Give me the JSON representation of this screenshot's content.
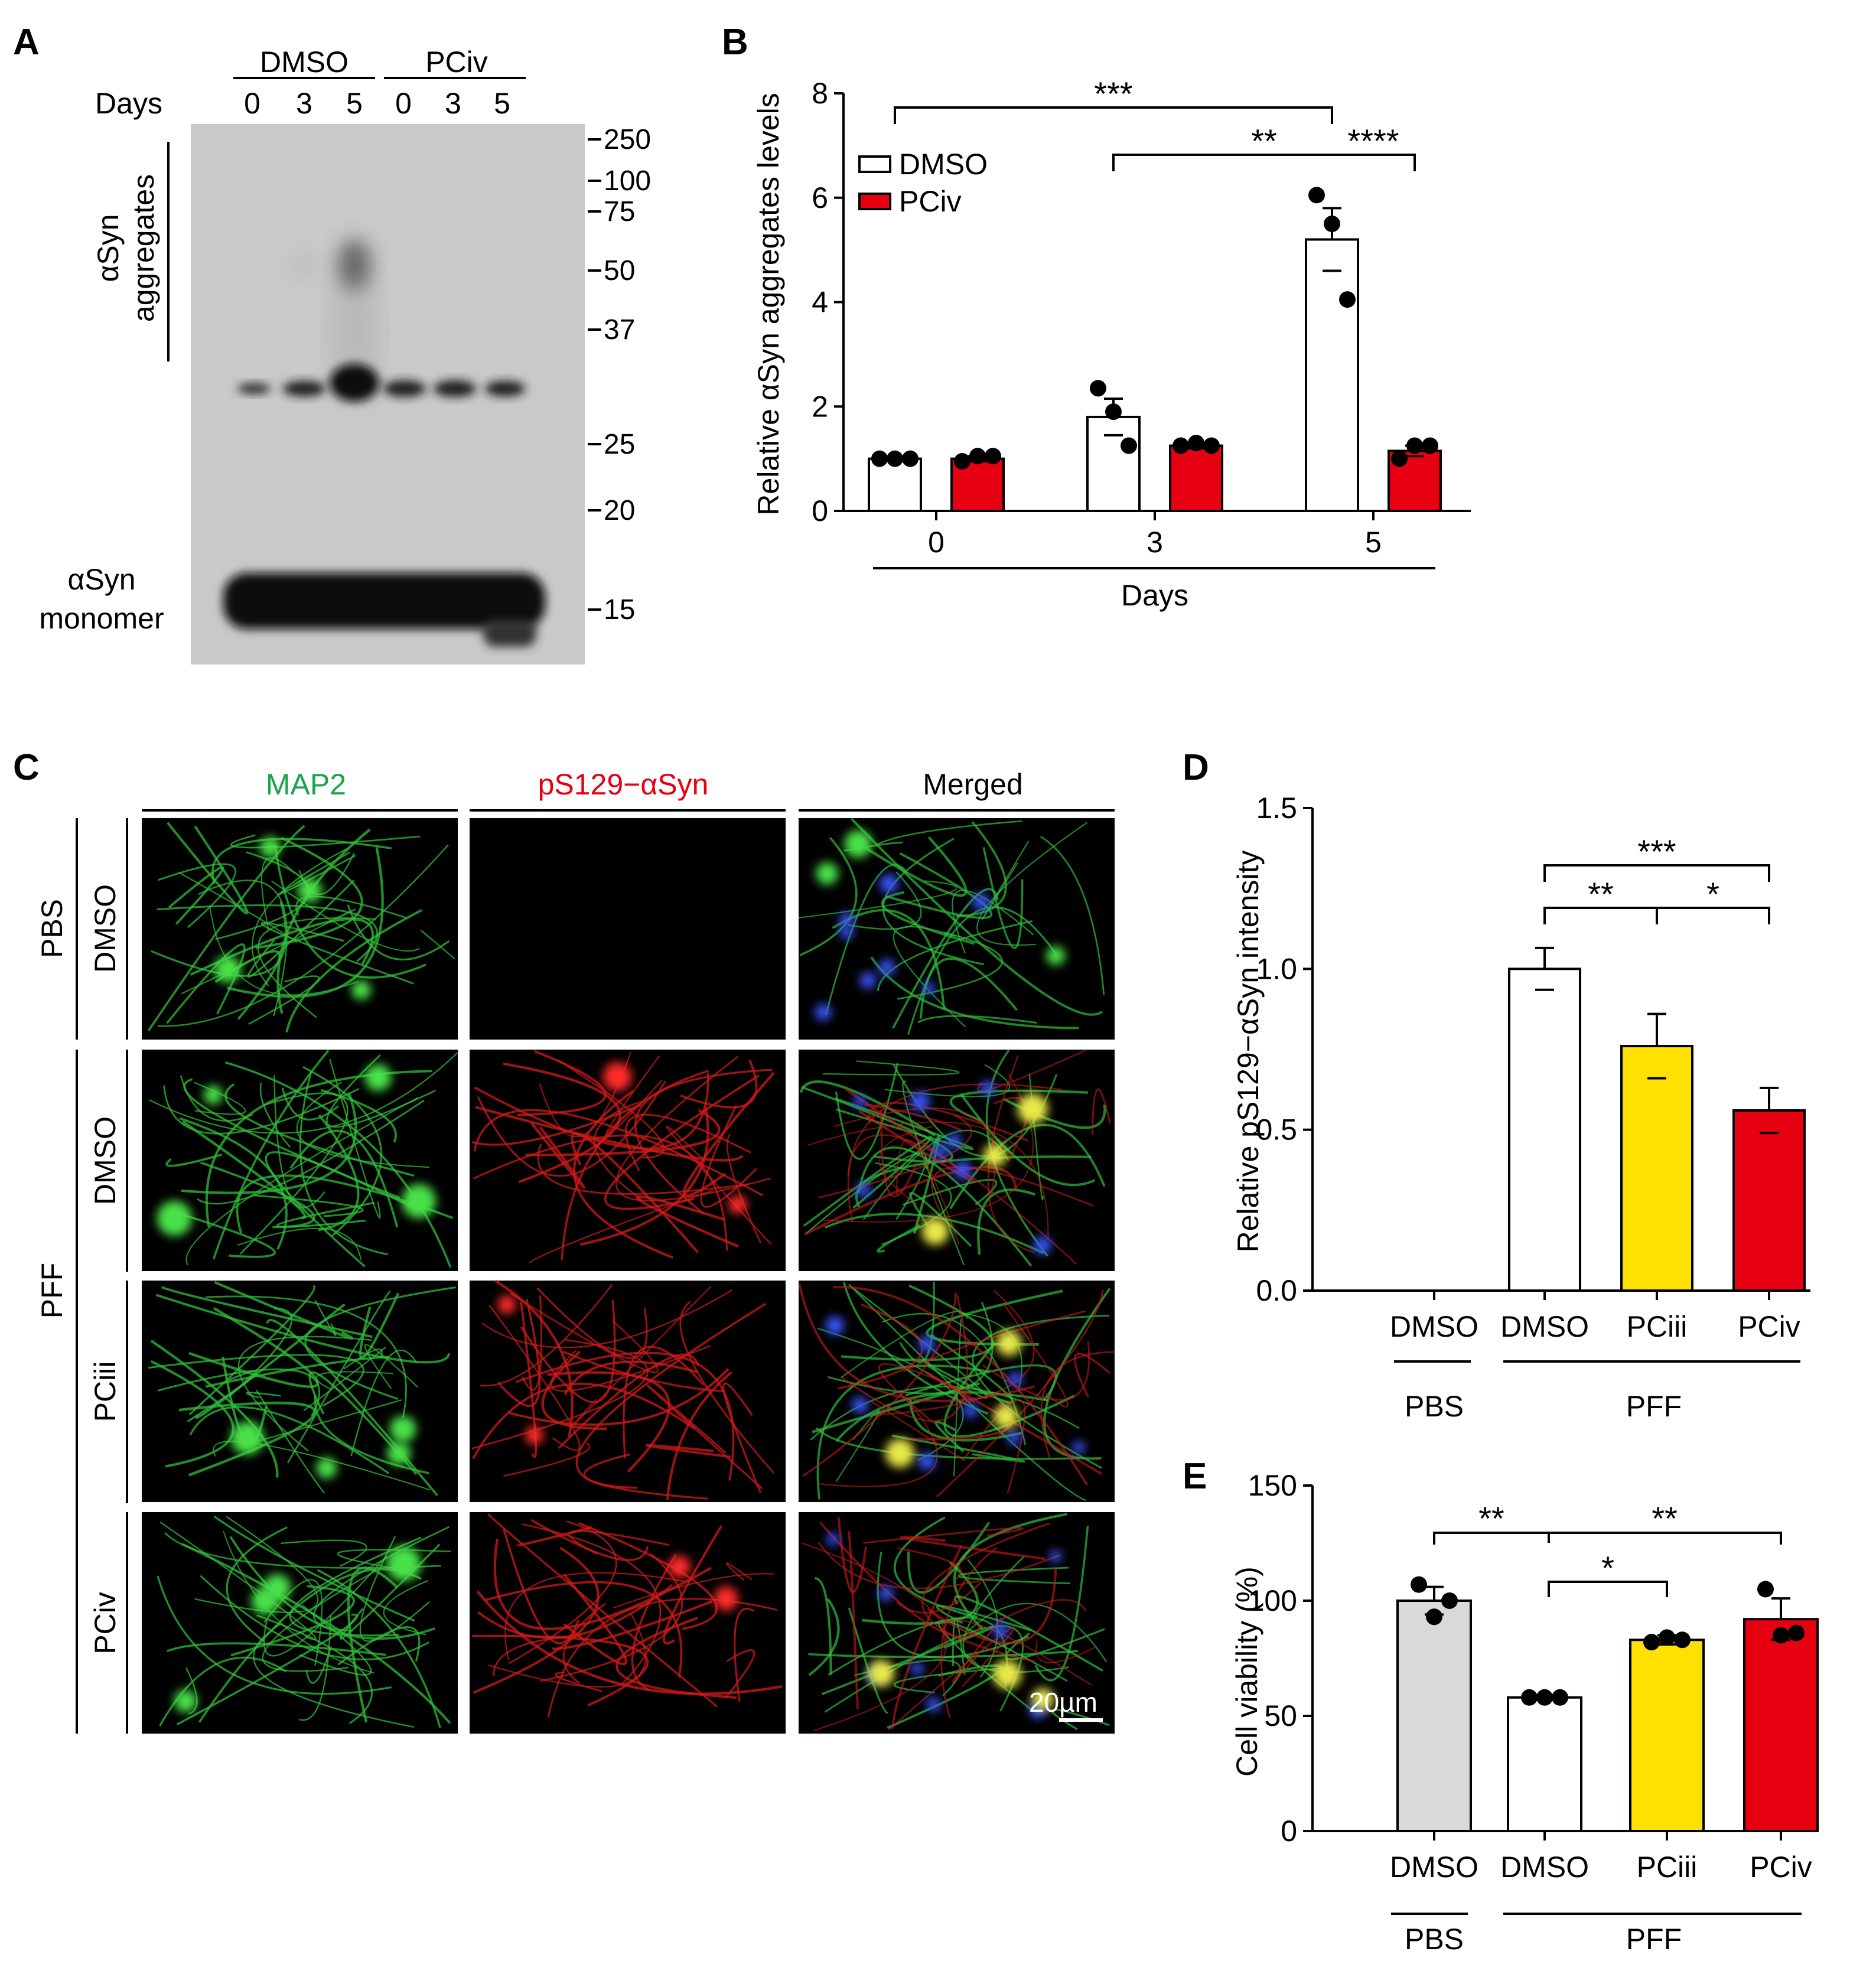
{
  "panel_letters": [
    "A",
    "B",
    "C",
    "D",
    "E"
  ],
  "colors": {
    "dmso_bar": "#ffffff",
    "pciv_bar": "#e60012",
    "pciii_bar": "#ffe100",
    "pbs_bar": "#d9d9d9",
    "map2_label": "#1aa34a",
    "ps129_label": "#e60012",
    "blot_background": "#c8c8c8",
    "microscopy_background": "#000000"
  },
  "blot": {
    "group_labels": [
      "DMSO",
      "PCiv"
    ],
    "days_label": "Days",
    "lane_days": [
      "0",
      "3",
      "5",
      "0",
      "3",
      "5"
    ],
    "aggregates_label_line1": "αSyn",
    "aggregates_label_line2": "aggregates",
    "monomer_label_line1": "αSyn",
    "monomer_label_line2": "monomer",
    "markers": [
      "250",
      "100",
      "75",
      "50",
      "37",
      "25",
      "20",
      "15"
    ]
  },
  "micro": {
    "columns": [
      "MAP2",
      "pS129−αSyn",
      "Merged"
    ],
    "groups": [
      "PBS",
      "PFF"
    ],
    "rows": [
      "DMSO",
      "DMSO",
      "PCiii",
      "PCiv"
    ],
    "scale_bar": "20µm"
  },
  "chart_data": [
    {
      "panel": "B",
      "type": "bar",
      "ylabel": "Relative αSyn aggregates levels",
      "xlabel": "Days",
      "categories": [
        "0",
        "3",
        "5"
      ],
      "ylim": [
        0,
        8
      ],
      "yticks": [
        0,
        2,
        4,
        6,
        8
      ],
      "legend_placement": "top-left",
      "series": [
        {
          "name": "DMSO",
          "values": [
            1.0,
            1.8,
            5.2
          ],
          "sem": [
            0.0,
            0.35,
            0.6
          ],
          "points": [
            [
              1.0,
              1.0,
              1.0
            ],
            [
              2.35,
              1.9,
              1.25
            ],
            [
              6.05,
              5.5,
              4.05
            ]
          ]
        },
        {
          "name": "PCiv",
          "values": [
            1.0,
            1.25,
            1.15
          ],
          "sem": [
            0.05,
            0.05,
            0.1
          ],
          "points": [
            [
              0.95,
              1.05,
              1.05
            ],
            [
              1.25,
              1.3,
              1.25
            ],
            [
              1.0,
              1.25,
              1.25
            ]
          ]
        }
      ],
      "significance": [
        "***",
        "**",
        "****"
      ]
    },
    {
      "panel": "D",
      "type": "bar",
      "ylabel": "Relative pS129−αSyn intensity",
      "categories": [
        "DMSO",
        "DMSO",
        "PCiii",
        "PCiv"
      ],
      "groups": [
        "PBS",
        "PFF"
      ],
      "ylim": [
        0,
        1.5
      ],
      "yticks": [
        "0.0",
        "0.5",
        "1.0",
        "1.5"
      ],
      "values": [
        0,
        1.0,
        0.76,
        0.56
      ],
      "sem": [
        0,
        0.065,
        0.1,
        0.07
      ],
      "significance": [
        "***",
        "**",
        "*"
      ]
    },
    {
      "panel": "E",
      "type": "bar",
      "ylabel": "Cell viability (%)",
      "categories": [
        "DMSO",
        "DMSO",
        "PCiii",
        "PCiv"
      ],
      "groups": [
        "PBS",
        "PFF"
      ],
      "ylim": [
        0,
        150
      ],
      "yticks": [
        0,
        50,
        100,
        150
      ],
      "values": [
        100,
        58,
        83,
        92
      ],
      "sem": [
        6,
        1,
        2,
        9
      ],
      "points": [
        [
          107,
          93,
          100
        ],
        [
          58,
          58,
          58
        ],
        [
          82,
          84,
          83
        ],
        [
          105,
          85,
          86
        ]
      ],
      "significance": [
        "**",
        "**",
        "*"
      ]
    }
  ]
}
